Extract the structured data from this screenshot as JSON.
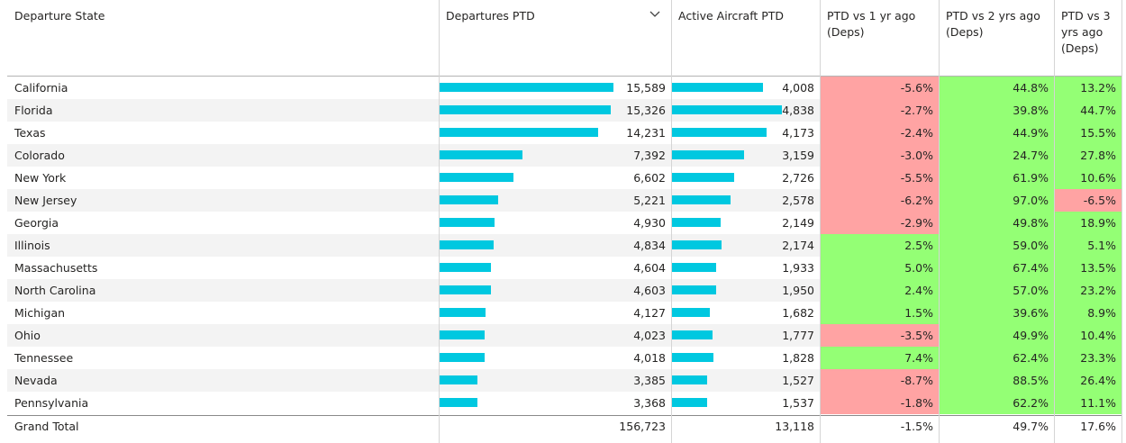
{
  "columns": [
    {
      "label": "Departure State"
    },
    {
      "label": "Departures PTD"
    },
    {
      "label": "Active Aircraft PTD"
    },
    {
      "label": "PTD vs 1 yr ago (Deps)"
    },
    {
      "label": "PTD vs 2 yrs ago (Deps)"
    },
    {
      "label": "PTD vs 3 yrs ago (Deps)"
    }
  ],
  "sort_icon": "chevron-down-icon",
  "colors": {
    "bar": "#00c8e0",
    "positive": "#94ff75",
    "negative": "#ffa3a3",
    "alt_row": "#f3f3f3"
  },
  "max": {
    "departures": 15589,
    "aircraft": 4838
  },
  "rows": [
    {
      "state": "California",
      "departures": 15589,
      "departures_label": "15,589",
      "aircraft": 4008,
      "aircraft_label": "4,008",
      "vs1": "-5.6%",
      "vs2": "44.8%",
      "vs3": "13.2%"
    },
    {
      "state": "Florida",
      "departures": 15326,
      "departures_label": "15,326",
      "aircraft": 4838,
      "aircraft_label": "4,838",
      "vs1": "-2.7%",
      "vs2": "39.8%",
      "vs3": "44.7%"
    },
    {
      "state": "Texas",
      "departures": 14231,
      "departures_label": "14,231",
      "aircraft": 4173,
      "aircraft_label": "4,173",
      "vs1": "-2.4%",
      "vs2": "44.9%",
      "vs3": "15.5%"
    },
    {
      "state": "Colorado",
      "departures": 7392,
      "departures_label": "7,392",
      "aircraft": 3159,
      "aircraft_label": "3,159",
      "vs1": "-3.0%",
      "vs2": "24.7%",
      "vs3": "27.8%"
    },
    {
      "state": "New York",
      "departures": 6602,
      "departures_label": "6,602",
      "aircraft": 2726,
      "aircraft_label": "2,726",
      "vs1": "-5.5%",
      "vs2": "61.9%",
      "vs3": "10.6%"
    },
    {
      "state": "New Jersey",
      "departures": 5221,
      "departures_label": "5,221",
      "aircraft": 2578,
      "aircraft_label": "2,578",
      "vs1": "-6.2%",
      "vs2": "97.0%",
      "vs3": "-6.5%"
    },
    {
      "state": "Georgia",
      "departures": 4930,
      "departures_label": "4,930",
      "aircraft": 2149,
      "aircraft_label": "2,149",
      "vs1": "-2.9%",
      "vs2": "49.8%",
      "vs3": "18.9%"
    },
    {
      "state": "Illinois",
      "departures": 4834,
      "departures_label": "4,834",
      "aircraft": 2174,
      "aircraft_label": "2,174",
      "vs1": "2.5%",
      "vs2": "59.0%",
      "vs3": "5.1%"
    },
    {
      "state": "Massachusetts",
      "departures": 4604,
      "departures_label": "4,604",
      "aircraft": 1933,
      "aircraft_label": "1,933",
      "vs1": "5.0%",
      "vs2": "67.4%",
      "vs3": "13.5%"
    },
    {
      "state": "North Carolina",
      "departures": 4603,
      "departures_label": "4,603",
      "aircraft": 1950,
      "aircraft_label": "1,950",
      "vs1": "2.4%",
      "vs2": "57.0%",
      "vs3": "23.2%"
    },
    {
      "state": "Michigan",
      "departures": 4127,
      "departures_label": "4,127",
      "aircraft": 1682,
      "aircraft_label": "1,682",
      "vs1": "1.5%",
      "vs2": "39.6%",
      "vs3": "8.9%"
    },
    {
      "state": "Ohio",
      "departures": 4023,
      "departures_label": "4,023",
      "aircraft": 1777,
      "aircraft_label": "1,777",
      "vs1": "-3.5%",
      "vs2": "49.9%",
      "vs3": "10.4%"
    },
    {
      "state": "Tennessee",
      "departures": 4018,
      "departures_label": "4,018",
      "aircraft": 1828,
      "aircraft_label": "1,828",
      "vs1": "7.4%",
      "vs2": "62.4%",
      "vs3": "23.3%"
    },
    {
      "state": "Nevada",
      "departures": 3385,
      "departures_label": "3,385",
      "aircraft": 1527,
      "aircraft_label": "1,527",
      "vs1": "-8.7%",
      "vs2": "88.5%",
      "vs3": "26.4%"
    },
    {
      "state": "Pennsylvania",
      "departures": 3368,
      "departures_label": "3,368",
      "aircraft": 1537,
      "aircraft_label": "1,537",
      "vs1": "-1.8%",
      "vs2": "62.2%",
      "vs3": "11.1%"
    }
  ],
  "total": {
    "label": "Grand Total",
    "departures": "156,723",
    "aircraft": "13,118",
    "vs1": "-1.5%",
    "vs2": "49.7%",
    "vs3": "17.6%"
  }
}
